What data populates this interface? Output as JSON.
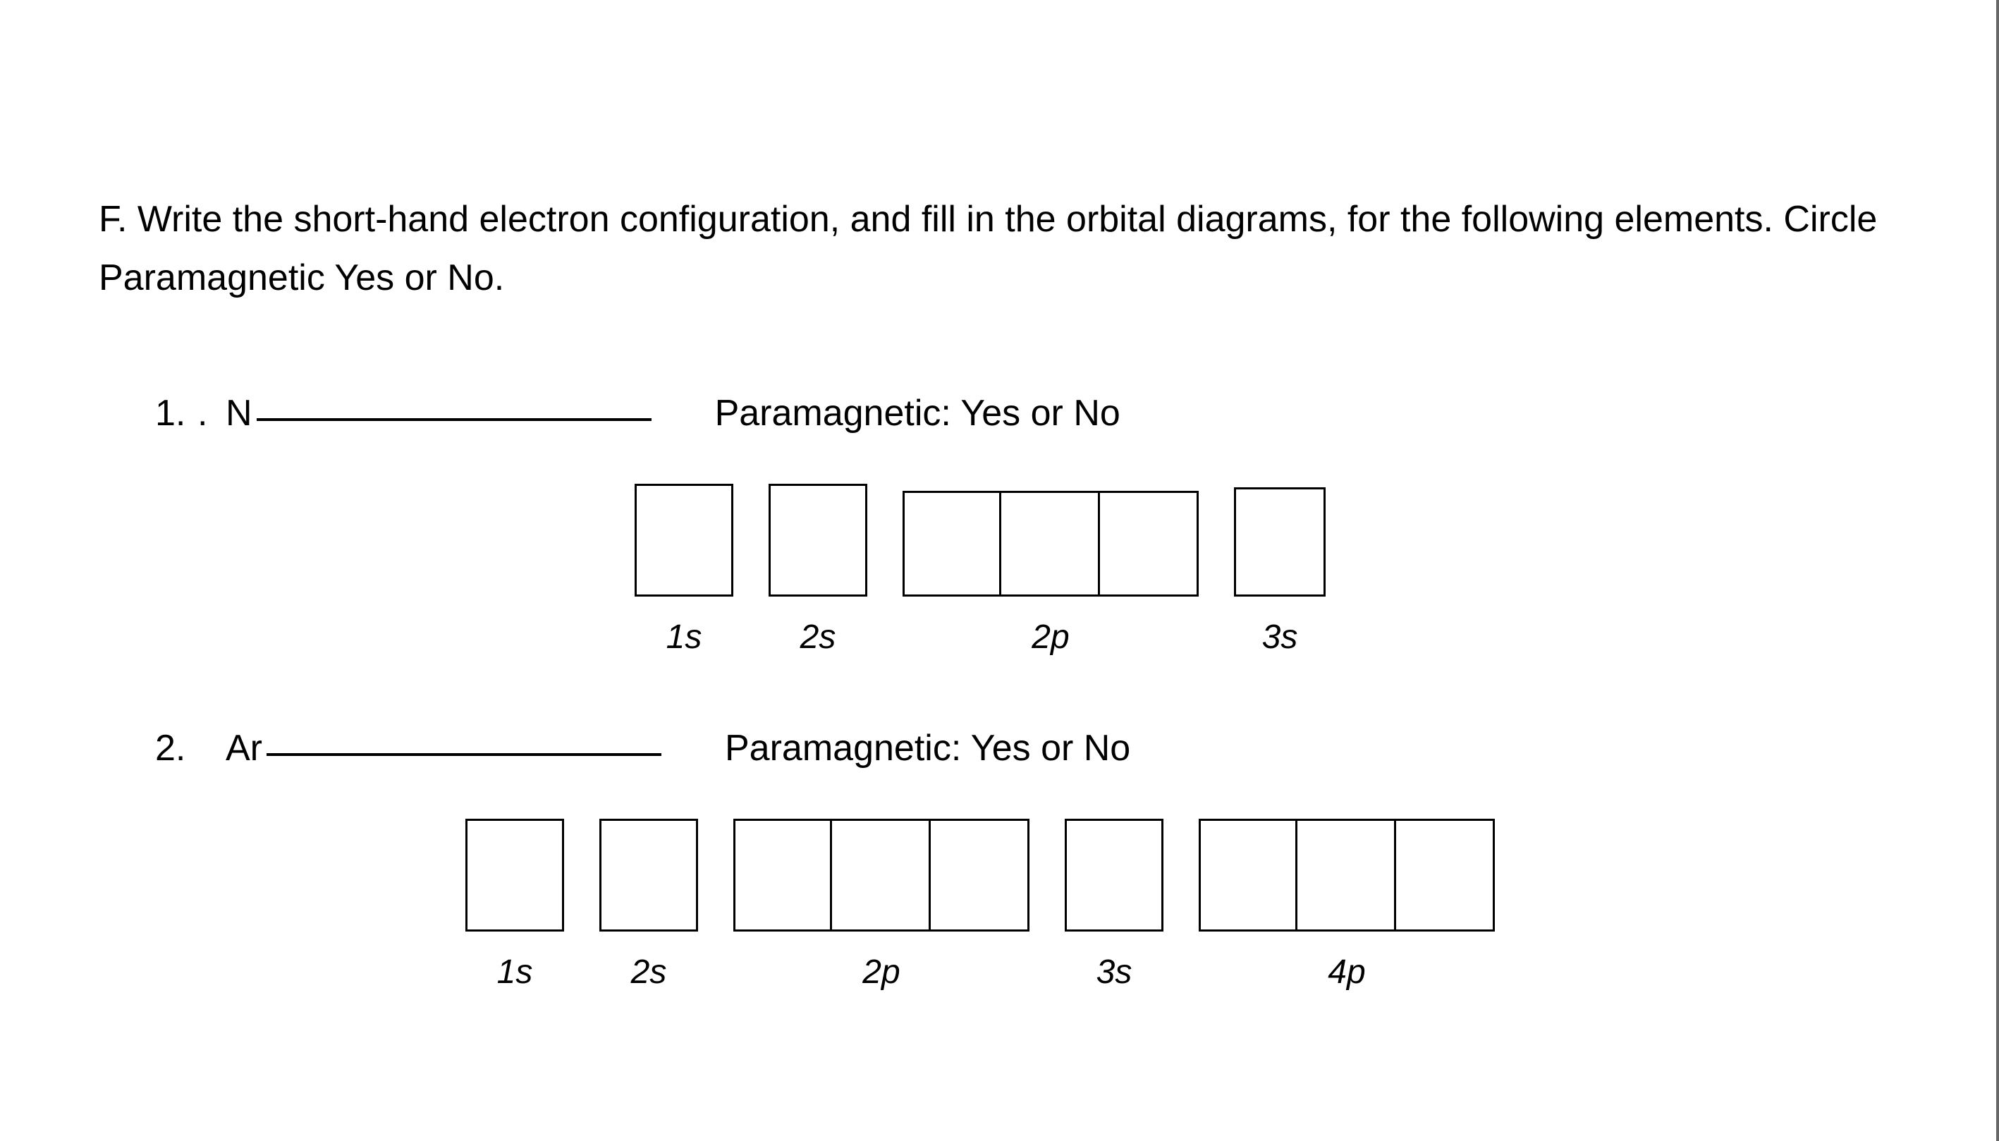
{
  "section_letter": "F.",
  "instructions": "Write the short-hand electron configuration, and fill in the orbital diagrams, for the following elements. Circle Paramagnetic Yes or No.",
  "paramagnetic_label": "Paramagnetic:  Yes or No",
  "problems": [
    {
      "number": "1.",
      "dot": ".",
      "element": "N",
      "orbitals": [
        {
          "label": "1s",
          "boxes": 1
        },
        {
          "label": "2s",
          "boxes": 1
        },
        {
          "label": "2p",
          "boxes": 3
        },
        {
          "label": "3s",
          "boxes": 1
        }
      ]
    },
    {
      "number": "2.",
      "dot": "",
      "element": "Ar",
      "orbitals": [
        {
          "label": "1s",
          "boxes": 1
        },
        {
          "label": "2s",
          "boxes": 1
        },
        {
          "label": "2p",
          "boxes": 3
        },
        {
          "label": "3s",
          "boxes": 1
        },
        {
          "label": "4p",
          "boxes": 3
        }
      ]
    }
  ],
  "colors": {
    "text": "#000000",
    "background": "#ffffff",
    "border": "#000000"
  },
  "font_family": "Comic Sans MS",
  "font_size_body": 52,
  "font_size_orbital_label": 48,
  "box_size": {
    "width": 140,
    "height": 160
  },
  "box_border_width": 3
}
